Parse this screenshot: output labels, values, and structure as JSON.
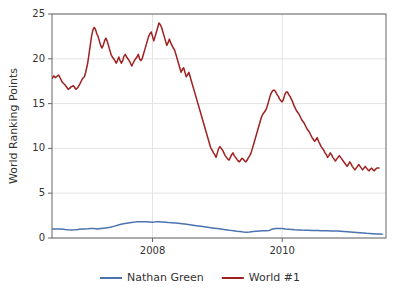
{
  "chart_data": {
    "type": "line",
    "ylabel": "World Ranking Points",
    "xlim": [
      2006.45,
      2011.6
    ],
    "xticks": [
      2008,
      2010
    ],
    "ylim": [
      0,
      25
    ],
    "yticks": [
      0,
      5,
      10,
      15,
      20,
      25
    ],
    "grid": true,
    "legend": "bottom",
    "series": [
      {
        "name": "Nathan Green",
        "color": "#4c72b0",
        "x": [
          2006.45,
          2006.5,
          2006.6,
          2006.65,
          2006.7,
          2006.75,
          2006.8,
          2006.85,
          2006.9,
          2006.95,
          2007.0,
          2007.05,
          2007.1,
          2007.15,
          2007.2,
          2007.25,
          2007.3,
          2007.35,
          2007.4,
          2007.45,
          2007.5,
          2007.55,
          2007.6,
          2007.65,
          2007.7,
          2007.75,
          2007.8,
          2007.85,
          2007.9,
          2007.95,
          2008.0,
          2008.05,
          2008.1,
          2008.15,
          2008.2,
          2008.25,
          2008.3,
          2008.35,
          2008.4,
          2008.45,
          2008.5,
          2008.55,
          2008.6,
          2008.65,
          2008.7,
          2008.75,
          2008.8,
          2008.85,
          2008.9,
          2008.95,
          2009.0,
          2009.05,
          2009.1,
          2009.15,
          2009.2,
          2009.25,
          2009.3,
          2009.35,
          2009.4,
          2009.45,
          2009.5,
          2009.55,
          2009.6,
          2009.65,
          2009.7,
          2009.75,
          2009.8,
          2009.85,
          2009.9,
          2009.95,
          2010.0,
          2010.05,
          2010.1,
          2010.15,
          2010.2,
          2010.25,
          2010.3,
          2010.35,
          2010.4,
          2010.45,
          2010.5,
          2010.55,
          2010.6,
          2010.65,
          2010.7,
          2010.75,
          2010.8,
          2010.85,
          2010.9,
          2010.95,
          2011.0,
          2011.05,
          2011.1,
          2011.15,
          2011.2,
          2011.25,
          2011.3,
          2011.35,
          2011.4,
          2011.45,
          2011.5,
          2011.55
        ],
        "values": [
          1.0,
          1.0,
          1.0,
          0.95,
          0.92,
          0.9,
          0.92,
          0.95,
          1.0,
          1.0,
          1.02,
          1.05,
          1.05,
          1.0,
          1.05,
          1.1,
          1.15,
          1.2,
          1.3,
          1.4,
          1.5,
          1.6,
          1.65,
          1.7,
          1.75,
          1.8,
          1.8,
          1.82,
          1.8,
          1.78,
          1.75,
          1.8,
          1.8,
          1.78,
          1.75,
          1.72,
          1.7,
          1.68,
          1.65,
          1.6,
          1.55,
          1.5,
          1.45,
          1.4,
          1.35,
          1.3,
          1.25,
          1.2,
          1.15,
          1.1,
          1.05,
          1.0,
          0.95,
          0.9,
          0.85,
          0.8,
          0.75,
          0.72,
          0.68,
          0.65,
          0.68,
          0.72,
          0.75,
          0.78,
          0.8,
          0.82,
          0.85,
          1.0,
          1.05,
          1.05,
          1.05,
          1.0,
          0.98,
          0.95,
          0.92,
          0.9,
          0.88,
          0.87,
          0.86,
          0.85,
          0.84,
          0.83,
          0.82,
          0.81,
          0.8,
          0.79,
          0.78,
          0.77,
          0.75,
          0.73,
          0.7,
          0.67,
          0.64,
          0.61,
          0.58,
          0.55,
          0.52,
          0.5,
          0.48,
          0.46,
          0.44,
          0.42
        ]
      },
      {
        "name": "World #1",
        "color": "#a02020",
        "x": [
          2006.45,
          2006.48,
          2006.5,
          2006.52,
          2006.55,
          2006.58,
          2006.6,
          2006.62,
          2006.65,
          2006.68,
          2006.7,
          2006.72,
          2006.75,
          2006.78,
          2006.8,
          2006.82,
          2006.85,
          2006.88,
          2006.9,
          2006.92,
          2006.95,
          2006.97,
          2007.0,
          2007.02,
          2007.04,
          2007.06,
          2007.08,
          2007.1,
          2007.12,
          2007.14,
          2007.16,
          2007.18,
          2007.2,
          2007.22,
          2007.24,
          2007.26,
          2007.28,
          2007.3,
          2007.32,
          2007.34,
          2007.36,
          2007.38,
          2007.4,
          2007.42,
          2007.44,
          2007.46,
          2007.48,
          2007.5,
          2007.52,
          2007.54,
          2007.56,
          2007.58,
          2007.6,
          2007.62,
          2007.64,
          2007.66,
          2007.68,
          2007.7,
          2007.72,
          2007.74,
          2007.76,
          2007.78,
          2007.8,
          2007.82,
          2007.84,
          2007.86,
          2007.88,
          2007.9,
          2007.92,
          2007.94,
          2007.96,
          2007.98,
          2008.0,
          2008.02,
          2008.04,
          2008.06,
          2008.08,
          2008.1,
          2008.12,
          2008.14,
          2008.16,
          2008.18,
          2008.2,
          2008.22,
          2008.24,
          2008.26,
          2008.28,
          2008.3,
          2008.32,
          2008.34,
          2008.36,
          2008.38,
          2008.4,
          2008.42,
          2008.44,
          2008.46,
          2008.48,
          2008.5,
          2008.52,
          2008.54,
          2008.56,
          2008.58,
          2008.6,
          2008.62,
          2008.64,
          2008.66,
          2008.68,
          2008.7,
          2008.72,
          2008.74,
          2008.76,
          2008.78,
          2008.8,
          2008.82,
          2008.84,
          2008.86,
          2008.88,
          2008.9,
          2008.92,
          2008.94,
          2008.96,
          2008.98,
          2009.0,
          2009.02,
          2009.04,
          2009.06,
          2009.08,
          2009.1,
          2009.12,
          2009.14,
          2009.16,
          2009.18,
          2009.2,
          2009.22,
          2009.24,
          2009.26,
          2009.28,
          2009.3,
          2009.32,
          2009.34,
          2009.36,
          2009.38,
          2009.4,
          2009.42,
          2009.44,
          2009.46,
          2009.48,
          2009.5,
          2009.52,
          2009.54,
          2009.56,
          2009.58,
          2009.6,
          2009.62,
          2009.64,
          2009.66,
          2009.68,
          2009.7,
          2009.72,
          2009.74,
          2009.76,
          2009.78,
          2009.8,
          2009.82,
          2009.84,
          2009.86,
          2009.88,
          2009.9,
          2009.92,
          2009.94,
          2009.96,
          2009.98,
          2010.0,
          2010.02,
          2010.04,
          2010.06,
          2010.08,
          2010.1,
          2010.12,
          2010.14,
          2010.16,
          2010.18,
          2010.2,
          2010.22,
          2010.24,
          2010.26,
          2010.28,
          2010.3,
          2010.32,
          2010.34,
          2010.36,
          2010.38,
          2010.4,
          2010.42,
          2010.44,
          2010.46,
          2010.48,
          2010.5,
          2010.52,
          2010.54,
          2010.56,
          2010.58,
          2010.6,
          2010.62,
          2010.64,
          2010.66,
          2010.68,
          2010.7,
          2010.72,
          2010.74,
          2010.76,
          2010.78,
          2010.8,
          2010.82,
          2010.84,
          2010.86,
          2010.88,
          2010.9,
          2010.92,
          2010.94,
          2010.96,
          2010.98,
          2011.0,
          2011.02,
          2011.04,
          2011.06,
          2011.08,
          2011.1,
          2011.12,
          2011.14,
          2011.16,
          2011.18,
          2011.2,
          2011.22,
          2011.24,
          2011.26,
          2011.28,
          2011.3,
          2011.32,
          2011.34,
          2011.36,
          2011.38,
          2011.4,
          2011.42,
          2011.44,
          2011.46,
          2011.48,
          2011.5
        ],
        "values": [
          17.8,
          18.1,
          17.9,
          18.0,
          18.2,
          17.8,
          17.5,
          17.3,
          17.1,
          16.8,
          16.6,
          16.7,
          16.9,
          17.0,
          16.8,
          16.6,
          16.8,
          17.2,
          17.5,
          17.8,
          18.0,
          18.5,
          19.5,
          20.5,
          21.5,
          22.5,
          23.2,
          23.5,
          23.3,
          22.8,
          22.5,
          22.0,
          21.5,
          21.2,
          21.5,
          22.0,
          22.3,
          22.0,
          21.5,
          21.0,
          20.5,
          20.2,
          20.0,
          19.8,
          19.5,
          19.8,
          20.2,
          19.8,
          19.5,
          19.8,
          20.3,
          20.5,
          20.2,
          20.0,
          19.8,
          19.5,
          19.2,
          19.5,
          19.8,
          20.0,
          20.2,
          20.5,
          20.0,
          19.8,
          20.0,
          20.5,
          21.0,
          21.5,
          22.0,
          22.5,
          22.8,
          23.0,
          22.5,
          22.0,
          22.5,
          23.0,
          23.5,
          24.0,
          23.8,
          23.5,
          23.0,
          22.5,
          22.0,
          21.5,
          21.8,
          22.2,
          21.8,
          21.5,
          21.2,
          21.0,
          20.5,
          20.0,
          19.5,
          19.0,
          18.5,
          18.8,
          19.0,
          18.5,
          18.0,
          18.2,
          18.5,
          18.0,
          17.5,
          17.0,
          16.5,
          16.0,
          15.5,
          15.0,
          14.5,
          14.0,
          13.5,
          13.0,
          12.5,
          12.0,
          11.5,
          11.0,
          10.5,
          10.0,
          9.8,
          9.5,
          9.3,
          9.0,
          9.5,
          10.0,
          10.2,
          10.0,
          9.8,
          9.5,
          9.2,
          9.0,
          8.8,
          8.7,
          9.0,
          9.3,
          9.5,
          9.2,
          9.0,
          8.8,
          8.6,
          8.5,
          8.7,
          8.9,
          8.8,
          8.6,
          8.5,
          8.7,
          9.0,
          9.2,
          9.5,
          10.0,
          10.5,
          11.0,
          11.5,
          12.0,
          12.5,
          13.0,
          13.5,
          13.8,
          14.0,
          14.2,
          14.5,
          15.0,
          15.5,
          16.0,
          16.3,
          16.5,
          16.5,
          16.3,
          16.0,
          15.8,
          15.5,
          15.3,
          15.2,
          15.5,
          16.0,
          16.3,
          16.3,
          16.0,
          15.8,
          15.5,
          15.2,
          14.8,
          14.5,
          14.2,
          14.0,
          13.8,
          13.5,
          13.2,
          13.0,
          12.8,
          12.5,
          12.2,
          12.0,
          11.8,
          11.5,
          11.2,
          11.0,
          10.8,
          11.0,
          11.2,
          10.8,
          10.5,
          10.2,
          10.0,
          9.8,
          9.5,
          9.3,
          9.0,
          9.2,
          9.5,
          9.3,
          9.0,
          8.8,
          8.6,
          8.8,
          9.0,
          9.2,
          9.0,
          8.8,
          8.6,
          8.4,
          8.2,
          8.0,
          8.2,
          8.5,
          8.3,
          8.0,
          7.8,
          7.6,
          7.8,
          8.0,
          8.2,
          8.0,
          7.8,
          7.6,
          7.8,
          8.0,
          7.8,
          7.6,
          7.5,
          7.7,
          7.8,
          7.6,
          7.5,
          7.7,
          7.8,
          7.8,
          7.8
        ]
      }
    ]
  }
}
